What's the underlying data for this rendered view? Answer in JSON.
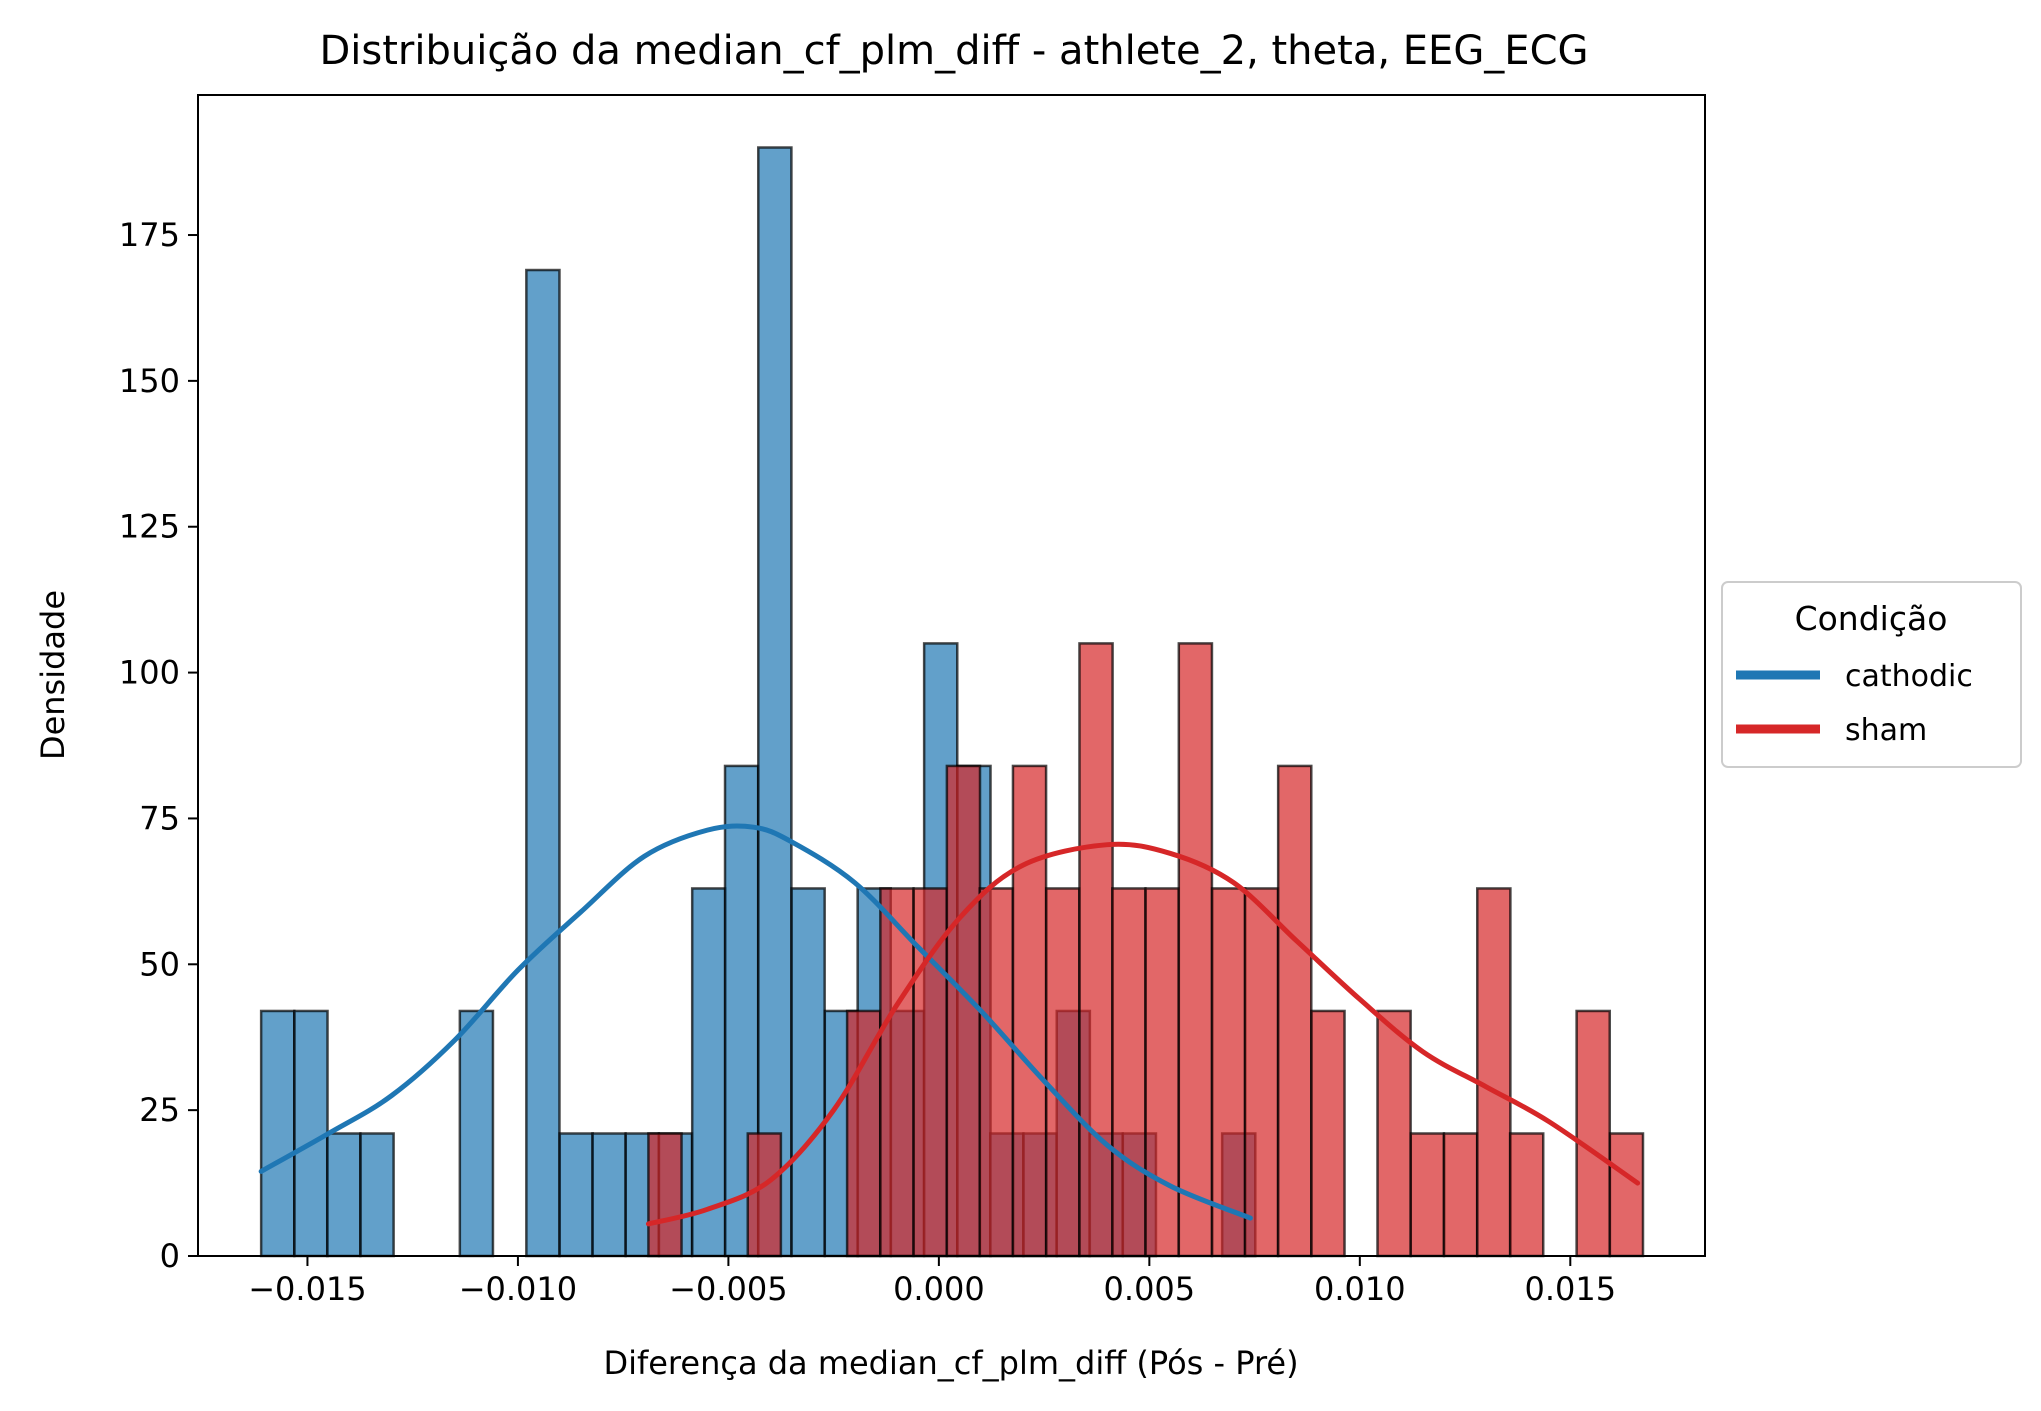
{
  "chart_data": {
    "type": "histogram",
    "title": "Distribuição da median_cf_plm_diff - athlete_2, theta, EEG_ECG",
    "xlabel": "Diferença da median_cf_plm_diff (Pós - Pré)",
    "ylabel": "Densidade",
    "xlim": [
      -0.0176,
      0.0182
    ],
    "ylim": [
      0,
      199
    ],
    "grid": false,
    "x_ticks": [
      -0.015,
      -0.01,
      -0.005,
      0.0,
      0.005,
      0.01,
      0.015
    ],
    "x_tick_labels": [
      "−0.015",
      "−0.010",
      "−0.005",
      "0.000",
      "0.005",
      "0.010",
      "0.015"
    ],
    "y_ticks": [
      0,
      25,
      50,
      75,
      100,
      125,
      150,
      175
    ],
    "y_tick_labels": [
      "0",
      "25",
      "50",
      "75",
      "100",
      "125",
      "150",
      "175"
    ],
    "legend": {
      "title": "Condição",
      "placement": "outside right",
      "entries": [
        "cathodic",
        "sham"
      ]
    },
    "series": [
      {
        "name": "cathodic",
        "color": "#1f77b4",
        "bin_width": 0.000787,
        "bins": [
          [
            -0.0161,
            42
          ],
          [
            -0.01531,
            42
          ],
          [
            -0.01453,
            21
          ],
          [
            -0.01374,
            21
          ],
          [
            -0.01295,
            0
          ],
          [
            -0.01216,
            0
          ],
          [
            -0.01138,
            42
          ],
          [
            -0.01059,
            0
          ],
          [
            -0.0098,
            169
          ],
          [
            -0.00901,
            21
          ],
          [
            -0.00823,
            21
          ],
          [
            -0.00744,
            21
          ],
          [
            -0.00665,
            21
          ],
          [
            -0.00586,
            63
          ],
          [
            -0.00508,
            84
          ],
          [
            -0.00429,
            190
          ],
          [
            -0.0035,
            63
          ],
          [
            -0.00271,
            42
          ],
          [
            -0.00193,
            63
          ],
          [
            -0.00114,
            42
          ],
          [
            -0.00035,
            105
          ],
          [
            0.00044,
            84
          ],
          [
            0.00122,
            21
          ],
          [
            0.00201,
            21
          ],
          [
            0.0028,
            42
          ],
          [
            0.00358,
            21
          ],
          [
            0.00437,
            21
          ],
          [
            0.00516,
            0
          ],
          [
            0.00595,
            0
          ],
          [
            0.00673,
            21
          ]
        ],
        "kde_x": [
          -0.0161,
          -0.0145,
          -0.013,
          -0.0115,
          -0.01,
          -0.0085,
          -0.007,
          -0.0055,
          -0.0044,
          -0.0035,
          -0.002,
          -0.0005,
          0.001,
          0.0025,
          0.004,
          0.0055,
          0.0074
        ],
        "kde_y": [
          14.5,
          21,
          27.5,
          37,
          49,
          59,
          68.5,
          73,
          73.5,
          71,
          64,
          53,
          42,
          30,
          19,
          12,
          6.5
        ]
      },
      {
        "name": "sham",
        "color": "#d62728",
        "bin_width": 0.000787,
        "bins": [
          [
            -0.0069,
            21
          ],
          [
            -0.00611,
            0
          ],
          [
            -0.00533,
            0
          ],
          [
            -0.00454,
            21
          ],
          [
            -0.00375,
            0
          ],
          [
            -0.00296,
            0
          ],
          [
            -0.00218,
            42
          ],
          [
            -0.00139,
            63
          ],
          [
            -0.0006,
            63
          ],
          [
            0.00019,
            84
          ],
          [
            0.00097,
            63
          ],
          [
            0.00176,
            84
          ],
          [
            0.00255,
            63
          ],
          [
            0.00334,
            105
          ],
          [
            0.00412,
            63
          ],
          [
            0.00491,
            63
          ],
          [
            0.0057,
            105
          ],
          [
            0.00649,
            63
          ],
          [
            0.00727,
            63
          ],
          [
            0.00806,
            84
          ],
          [
            0.00885,
            42
          ],
          [
            0.00964,
            0
          ],
          [
            0.01042,
            42
          ],
          [
            0.01121,
            21
          ],
          [
            0.012,
            21
          ],
          [
            0.01279,
            63
          ],
          [
            0.01357,
            21
          ],
          [
            0.01436,
            0
          ],
          [
            0.01515,
            42
          ],
          [
            0.01594,
            21
          ]
        ],
        "kde_x": [
          -0.0069,
          -0.0055,
          -0.004,
          -0.0025,
          -0.001,
          0.0005,
          0.002,
          0.004,
          0.0055,
          0.007,
          0.0085,
          0.01,
          0.0115,
          0.013,
          0.0145,
          0.0166
        ],
        "kde_y": [
          5.5,
          8,
          13,
          25,
          43,
          58,
          67,
          70.5,
          69,
          64,
          54,
          44,
          35,
          29,
          23,
          12.5
        ]
      }
    ]
  }
}
